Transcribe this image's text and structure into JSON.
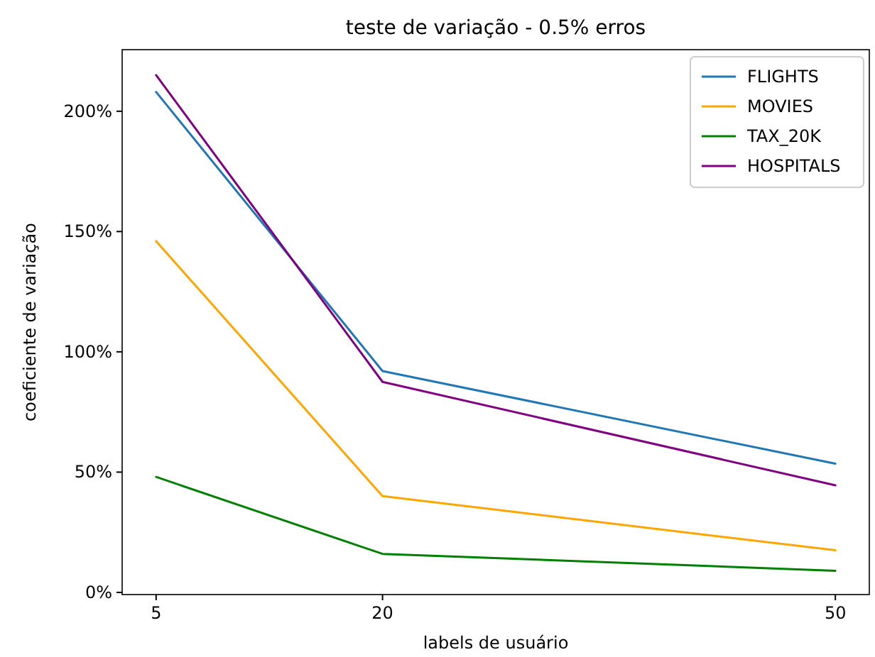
{
  "chart_data": {
    "type": "line",
    "title": "teste de variação - 0.5% erros",
    "xlabel": "labels de usuário",
    "ylabel": "coeficiente de variação",
    "x": [
      5,
      20,
      50
    ],
    "series": [
      {
        "name": "FLIGHTS",
        "color": "#1f77b4",
        "values": [
          208,
          92,
          53.5
        ]
      },
      {
        "name": "MOVIES",
        "color": "#ffa500",
        "values": [
          146,
          40,
          17.5
        ]
      },
      {
        "name": "TAX_20K",
        "color": "#008000",
        "values": [
          48,
          16,
          9
        ]
      },
      {
        "name": "HOSPITALS",
        "color": "#800080",
        "values": [
          215,
          87.5,
          44.5
        ]
      }
    ],
    "xlim": [
      2.75,
      52.25
    ],
    "xticks": [
      5,
      20,
      50
    ],
    "ylim": [
      -0.9,
      225.6
    ],
    "yticks": [
      {
        "value": 0,
        "label": "0%"
      },
      {
        "value": 50,
        "label": "50%"
      },
      {
        "value": 100,
        "label": "100%"
      },
      {
        "value": 150,
        "label": "150%"
      },
      {
        "value": 200,
        "label": "200%"
      }
    ],
    "grid": false,
    "legend": "top right",
    "line_style": "solid",
    "marker": "none"
  }
}
